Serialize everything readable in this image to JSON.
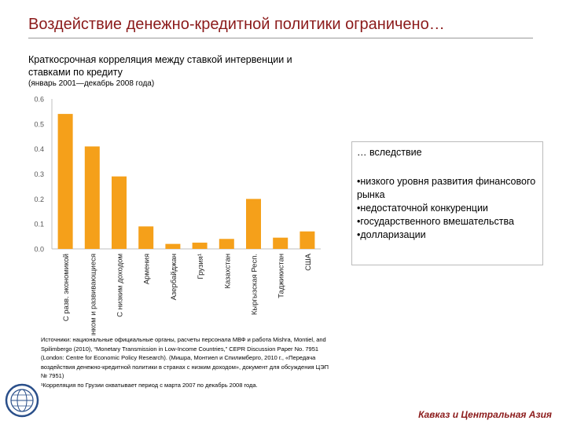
{
  "header": {
    "title": "Воздействие денежно-кредитной политики ограничено…",
    "subtitle": "Краткосрочная корреляция между ставкой интервенции и ставками по кредиту",
    "period": "(январь 2001—декабрь 2008 года)"
  },
  "chart_data": {
    "type": "bar",
    "categories": [
      "С разв. экономикой",
      "С форм. рынком и развивающиеся",
      "С низким доходом",
      "Армения",
      "Азербайджан",
      "Грузия¹",
      "Казахстан",
      "Кыргызская Респ.",
      "Таджикистан",
      "США"
    ],
    "values": [
      0.54,
      0.41,
      0.29,
      0.09,
      0.02,
      0.025,
      0.04,
      0.2,
      0.045,
      0.07
    ],
    "ylim": [
      0,
      0.6
    ],
    "yticks": [
      "0.0",
      "0.1",
      "0.2",
      "0.3",
      "0.4",
      "0.5",
      "0.6"
    ],
    "bar_color": "#f5a01a",
    "title": "",
    "xlabel": "",
    "ylabel": ""
  },
  "callout": {
    "lead": "… вследствие",
    "items": [
      "•низкого уровня развития финансового рынка",
      "•недостаточной конкуренции",
      "•государственного вмешательства",
      "•долларизации"
    ]
  },
  "sources": {
    "lines": [
      "Источники: национальные официальные органы, расчеты персонала МВФ и работа Mishra, Montiel, and Spilimbergo (2010), “Monetary Transmission in Low-Income Countries,” CEPR Discussion Paper No. 7951 (London: Centre for Economic Policy Research). (Мишра, Монтиел и Спилимберго, 2010 г., «Передача воздействия денежно-кредитной политики в странах с низким доходом», документ для обсуждения ЦЭП № 7951)",
      "¹Корреляция по Грузии охватывает период с марта 2007 по декабрь 2008 года."
    ]
  },
  "footer": {
    "region": "Кавказ и Центральная Азия"
  },
  "logo": {
    "icon": "imf-seal-icon"
  },
  "colors": {
    "title": "#8b1a1a",
    "bar": "#f5a01a",
    "axis": "#bfbfbf"
  }
}
